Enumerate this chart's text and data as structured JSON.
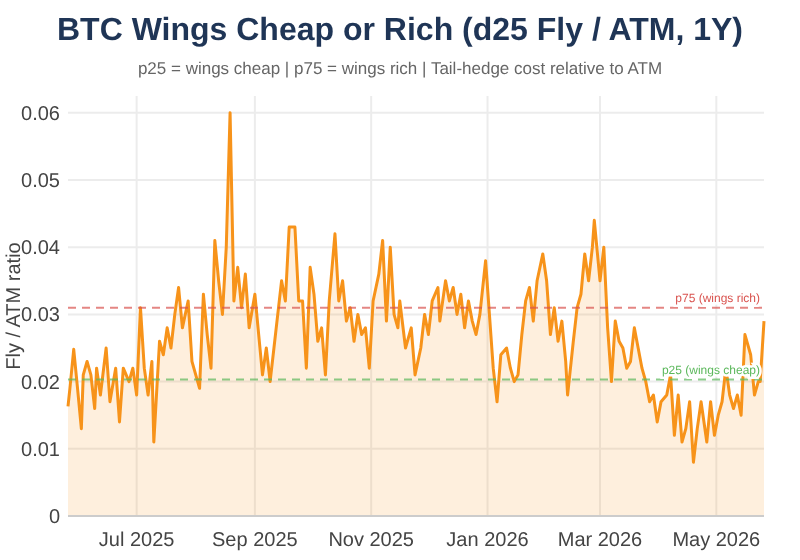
{
  "chart_data": {
    "type": "area",
    "title": "BTC Wings Cheap or Rich (d25 Fly / ATM, 1Y)",
    "subtitle": "p25 = wings cheap | p75 = wings rich | Tail-hedge cost relative to ATM",
    "ylabel": "Fly / ATM ratio",
    "xlim": [
      "2025-05-26",
      "2026-05-26"
    ],
    "xticks": [
      {
        "value": "2025-07-01",
        "label": "Jul 2025"
      },
      {
        "value": "2025-09-01",
        "label": "Sep 2025"
      },
      {
        "value": "2025-11-01",
        "label": "Nov 2025"
      },
      {
        "value": "2026-01-01",
        "label": "Jan 2026"
      },
      {
        "value": "2026-03-01",
        "label": "Mar 2026"
      },
      {
        "value": "2026-05-01",
        "label": "May 2026"
      }
    ],
    "ylim": [
      0,
      0.0625
    ],
    "yticks": [
      0,
      0.01,
      0.02,
      0.03,
      0.04,
      0.05,
      0.06
    ],
    "grid": true,
    "ref_lines": [
      {
        "axis": "y",
        "value": 0.031,
        "label": "p75 (wings rich)",
        "color": "#d9534f",
        "line_style": "dashed"
      },
      {
        "axis": "y",
        "value": 0.0203,
        "label": "p25 (wings cheap)",
        "color": "#5cb85c",
        "line_style": "dashed"
      }
    ],
    "series": [
      {
        "color": "#f7931a",
        "x": [
          "2025-05-26",
          "2025-05-27",
          "2025-05-29",
          "2025-05-31",
          "2025-06-02",
          "2025-06-03",
          "2025-06-05",
          "2025-06-07",
          "2025-06-09",
          "2025-06-10",
          "2025-06-12",
          "2025-06-15",
          "2025-06-17",
          "2025-06-20",
          "2025-06-22",
          "2025-06-24",
          "2025-06-27",
          "2025-06-29",
          "2025-07-01",
          "2025-07-03",
          "2025-07-05",
          "2025-07-07",
          "2025-07-09",
          "2025-07-10",
          "2025-07-13",
          "2025-07-15",
          "2025-07-17",
          "2025-07-19",
          "2025-07-21",
          "2025-07-23",
          "2025-07-25",
          "2025-07-28",
          "2025-07-30",
          "2025-08-01",
          "2025-08-03",
          "2025-08-05",
          "2025-08-07",
          "2025-08-09",
          "2025-08-11",
          "2025-08-13",
          "2025-08-15",
          "2025-08-17",
          "2025-08-19",
          "2025-08-21",
          "2025-08-23",
          "2025-08-25",
          "2025-08-27",
          "2025-08-29",
          "2025-09-01",
          "2025-09-03",
          "2025-09-05",
          "2025-09-07",
          "2025-09-09",
          "2025-09-11",
          "2025-09-13",
          "2025-09-15",
          "2025-09-17",
          "2025-09-19",
          "2025-09-22",
          "2025-09-24",
          "2025-09-26",
          "2025-09-28",
          "2025-09-30",
          "2025-10-02",
          "2025-10-04",
          "2025-10-06",
          "2025-10-08",
          "2025-10-10",
          "2025-10-13",
          "2025-10-15",
          "2025-10-17",
          "2025-10-19",
          "2025-10-21",
          "2025-10-23",
          "2025-10-25",
          "2025-10-27",
          "2025-10-29",
          "2025-10-31",
          "2025-11-02",
          "2025-11-05",
          "2025-11-07",
          "2025-11-09",
          "2025-11-11",
          "2025-11-13",
          "2025-11-15",
          "2025-11-16",
          "2025-11-19",
          "2025-11-22",
          "2025-11-24",
          "2025-11-27",
          "2025-11-29",
          "2025-12-01",
          "2025-12-03",
          "2025-12-06",
          "2025-12-07",
          "2025-12-10",
          "2025-12-12",
          "2025-12-14",
          "2025-12-16",
          "2025-12-18",
          "2025-12-20",
          "2025-12-22",
          "2025-12-24",
          "2025-12-26",
          "2025-12-28",
          "2025-12-31",
          "2026-01-02",
          "2026-01-04",
          "2026-01-06",
          "2026-01-08",
          "2026-01-11",
          "2026-01-13",
          "2026-01-15",
          "2026-01-17",
          "2026-01-19",
          "2026-01-21",
          "2026-01-23",
          "2026-01-25",
          "2026-01-27",
          "2026-01-30",
          "2026-02-01",
          "2026-02-03",
          "2026-02-05",
          "2026-02-07",
          "2026-02-09",
          "2026-02-11",
          "2026-02-12",
          "2026-02-15",
          "2026-02-17",
          "2026-02-19",
          "2026-02-21",
          "2026-02-23",
          "2026-02-25",
          "2026-02-26",
          "2026-03-01",
          "2026-03-03",
          "2026-03-05",
          "2026-03-07",
          "2026-03-09",
          "2026-03-11",
          "2026-03-13",
          "2026-03-15",
          "2026-03-17",
          "2026-03-19",
          "2026-03-21",
          "2026-03-23",
          "2026-03-25",
          "2026-03-27",
          "2026-03-29",
          "2026-03-31",
          "2026-04-02",
          "2026-04-05",
          "2026-04-07",
          "2026-04-09",
          "2026-04-11",
          "2026-04-13",
          "2026-04-15",
          "2026-04-17",
          "2026-04-19",
          "2026-04-21",
          "2026-04-23",
          "2026-04-26",
          "2026-04-28",
          "2026-04-30",
          "2026-05-02",
          "2026-05-04",
          "2026-05-06",
          "2026-05-08",
          "2026-05-10",
          "2026-05-12",
          "2026-05-14",
          "2026-05-16",
          "2026-05-19",
          "2026-05-21",
          "2026-05-23",
          "2026-05-24",
          "2026-05-26"
        ],
        "values": [
          0.0163,
          0.019,
          0.0248,
          0.019,
          0.013,
          0.021,
          0.023,
          0.021,
          0.016,
          0.022,
          0.018,
          0.025,
          0.017,
          0.022,
          0.014,
          0.022,
          0.02,
          0.022,
          0.018,
          0.031,
          0.022,
          0.018,
          0.023,
          0.011,
          0.026,
          0.024,
          0.028,
          0.025,
          0.03,
          0.034,
          0.028,
          0.032,
          0.023,
          0.021,
          0.019,
          0.033,
          0.027,
          0.022,
          0.041,
          0.035,
          0.03,
          0.04,
          0.06,
          0.032,
          0.037,
          0.031,
          0.036,
          0.028,
          0.033,
          0.027,
          0.021,
          0.025,
          0.02,
          0.025,
          0.03,
          0.035,
          0.032,
          0.043,
          0.043,
          0.032,
          0.032,
          0.022,
          0.037,
          0.033,
          0.026,
          0.028,
          0.021,
          0.032,
          0.042,
          0.032,
          0.035,
          0.029,
          0.031,
          0.026,
          0.03,
          0.027,
          0.028,
          0.022,
          0.032,
          0.036,
          0.041,
          0.029,
          0.04,
          0.03,
          0.028,
          0.032,
          0.025,
          0.028,
          0.021,
          0.025,
          0.03,
          0.027,
          0.032,
          0.034,
          0.029,
          0.035,
          0.032,
          0.034,
          0.03,
          0.033,
          0.028,
          0.032,
          0.029,
          0.027,
          0.03,
          0.038,
          0.03,
          0.022,
          0.017,
          0.024,
          0.025,
          0.022,
          0.02,
          0.021,
          0.027,
          0.032,
          0.034,
          0.029,
          0.035,
          0.039,
          0.035,
          0.027,
          0.031,
          0.026,
          0.029,
          0.023,
          0.018,
          0.026,
          0.031,
          0.033,
          0.039,
          0.035,
          0.04,
          0.044,
          0.035,
          0.04,
          0.028,
          0.02,
          0.029,
          0.026,
          0.025,
          0.022,
          0.023,
          0.028,
          0.025,
          0.022,
          0.02,
          0.017,
          0.018,
          0.014,
          0.017,
          0.018,
          0.021,
          0.012,
          0.018,
          0.011,
          0.013,
          0.017,
          0.008,
          0.013,
          0.017,
          0.011,
          0.017,
          0.012,
          0.015,
          0.017,
          0.022,
          0.018,
          0.016,
          0.018,
          0.015,
          0.027,
          0.024,
          0.018,
          0.02,
          0.02,
          0.029
        ]
      }
    ]
  }
}
